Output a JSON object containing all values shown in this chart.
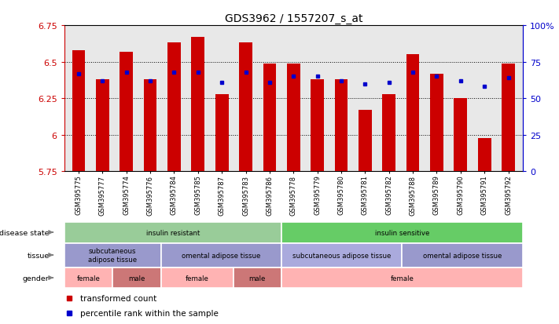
{
  "title": "GDS3962 / 1557207_s_at",
  "samples": [
    "GSM395775",
    "GSM395777",
    "GSM395774",
    "GSM395776",
    "GSM395784",
    "GSM395785",
    "GSM395787",
    "GSM395783",
    "GSM395786",
    "GSM395778",
    "GSM395779",
    "GSM395780",
    "GSM395781",
    "GSM395782",
    "GSM395788",
    "GSM395789",
    "GSM395790",
    "GSM395791",
    "GSM395792"
  ],
  "bar_heights": [
    6.58,
    6.38,
    6.57,
    6.38,
    6.63,
    6.67,
    6.28,
    6.63,
    6.49,
    6.49,
    6.38,
    6.38,
    6.17,
    6.28,
    6.55,
    6.42,
    6.25,
    5.98,
    6.49
  ],
  "blue_dots": [
    6.42,
    6.37,
    6.43,
    6.37,
    6.43,
    6.43,
    6.36,
    6.43,
    6.36,
    6.4,
    6.4,
    6.37,
    6.35,
    6.36,
    6.43,
    6.4,
    6.37,
    6.33,
    6.39
  ],
  "bar_color": "#cc0000",
  "dot_color": "#0000cc",
  "ymin": 5.75,
  "ymax": 6.75,
  "yticks": [
    5.75,
    6.0,
    6.25,
    6.5,
    6.75
  ],
  "ytick_labels": [
    "5.75",
    "6",
    "6.25",
    "6.5",
    "6.75"
  ],
  "right_yticks": [
    0,
    25,
    50,
    75,
    100
  ],
  "right_ytick_labels": [
    "0",
    "25",
    "50",
    "75",
    "100%"
  ],
  "disease_state_groups": [
    {
      "label": "insulin resistant",
      "start": 0,
      "end": 9,
      "color": "#99cc99"
    },
    {
      "label": "insulin sensitive",
      "start": 9,
      "end": 19,
      "color": "#66cc66"
    }
  ],
  "tissue_groups": [
    {
      "label": "subcutaneous\nadipose tissue",
      "start": 0,
      "end": 4,
      "color": "#9999cc"
    },
    {
      "label": "omental adipose tissue",
      "start": 4,
      "end": 9,
      "color": "#9999cc"
    },
    {
      "label": "subcutaneous adipose tissue",
      "start": 9,
      "end": 14,
      "color": "#aaaadd"
    },
    {
      "label": "omental adipose tissue",
      "start": 14,
      "end": 19,
      "color": "#9999cc"
    }
  ],
  "gender_groups": [
    {
      "label": "female",
      "start": 0,
      "end": 2,
      "color": "#ffb3b3"
    },
    {
      "label": "male",
      "start": 2,
      "end": 4,
      "color": "#cc7777"
    },
    {
      "label": "female",
      "start": 4,
      "end": 7,
      "color": "#ffb3b3"
    },
    {
      "label": "male",
      "start": 7,
      "end": 9,
      "color": "#cc7777"
    },
    {
      "label": "female",
      "start": 9,
      "end": 19,
      "color": "#ffb3b3"
    }
  ],
  "legend_items": [
    {
      "label": "transformed count",
      "color": "#cc0000"
    },
    {
      "label": "percentile rank within the sample",
      "color": "#0000cc"
    }
  ],
  "bg_color": "#ffffff",
  "plot_bg_color": "#e8e8e8",
  "left_axis_color": "#cc0000",
  "right_axis_color": "#0000cc"
}
